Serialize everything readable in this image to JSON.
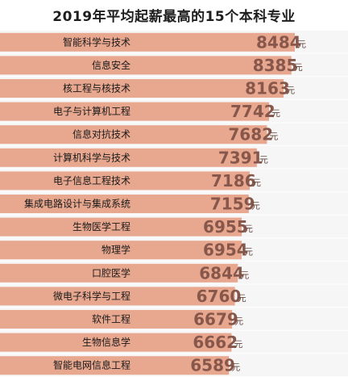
{
  "chart_data": {
    "type": "bar",
    "orientation": "horizontal",
    "title": "2019年平均起薪最高的15个本科专业",
    "unit": "元",
    "categories": [
      "智能科学与技术",
      "信息安全",
      "核工程与核技术",
      "电子与计算机工程",
      "信息对抗技术",
      "计算机科学与技术",
      "电子信息工程技术",
      "集成电路设计与集成系统",
      "生物医学工程",
      "物理学",
      "口腔医学",
      "微电子科学与工程",
      "软件工程",
      "生物信息学",
      "智能电网信息工程"
    ],
    "values": [
      8484,
      8385,
      8163,
      7742,
      7682,
      7391,
      7186,
      7159,
      6955,
      6954,
      6844,
      6760,
      6679,
      6662,
      6589
    ],
    "bar_color": "#e8a78f",
    "value_color": "#86574a"
  }
}
